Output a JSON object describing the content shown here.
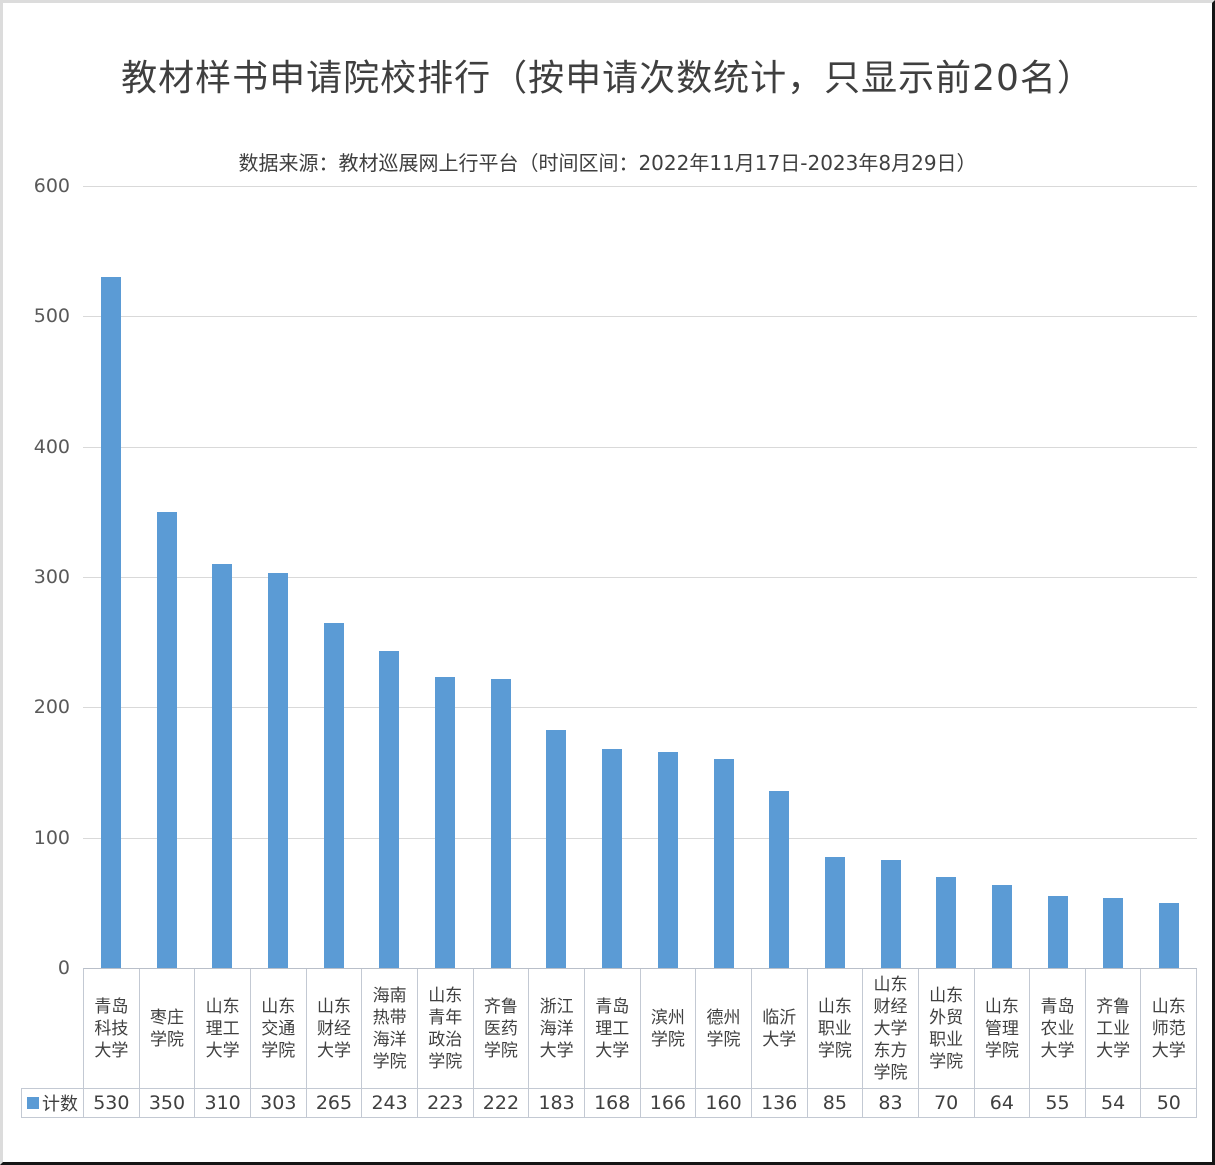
{
  "title": "教材样书申请院校排行（按申请次数统计，只显示前20名）",
  "subtitle": "数据来源：教材巡展网上行平台（时间区间：2022年11月17日-2023年8月29日）",
  "legend": {
    "series_label": "计数"
  },
  "colors": {
    "bar": "#5B9BD5",
    "gridline": "#D9D9D9",
    "table_border": "#C3C9D3",
    "axis_text": "#595959",
    "text": "#404040"
  },
  "chart_data": {
    "type": "bar",
    "title": "教材样书申请院校排行（按申请次数统计，只显示前20名）",
    "subtitle": "数据来源：教材巡展网上行平台（时间区间：2022年11月17日-2023年8月29日）",
    "series_name": "计数",
    "categories": [
      "青岛科技大学",
      "枣庄学院",
      "山东理工大学",
      "山东交通学院",
      "山东财经大学",
      "海南热带海洋学院",
      "山东青年政治学院",
      "齐鲁医药学院",
      "浙江海洋大学",
      "青岛理工大学",
      "滨州学院",
      "德州学院",
      "临沂大学",
      "山东职业学院",
      "山东财经大学东方学院",
      "山东外贸职业学院",
      "山东管理学院",
      "青岛农业大学",
      "齐鲁工业大学",
      "山东师范大学"
    ],
    "values": [
      530,
      350,
      310,
      303,
      265,
      243,
      223,
      222,
      183,
      168,
      166,
      160,
      136,
      85,
      83,
      70,
      64,
      55,
      54,
      50
    ],
    "xlabel": "",
    "ylabel": "",
    "ylim": [
      0,
      600
    ],
    "yticks": [
      0,
      100,
      200,
      300,
      400,
      500,
      600
    ],
    "grid": true,
    "legend_position": "data-table-left"
  }
}
